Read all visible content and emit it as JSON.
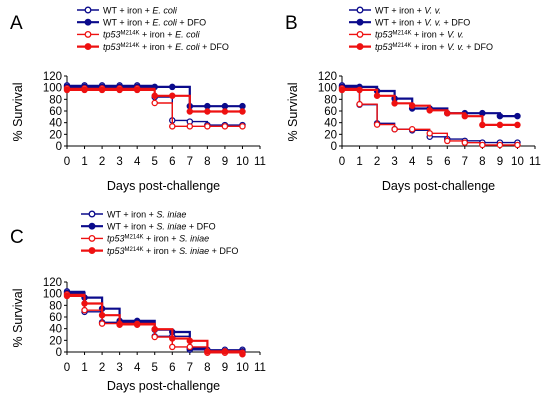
{
  "chart_data": [
    {
      "panel": "A",
      "type": "line",
      "xlabel": "Days post-challenge",
      "ylabel": "% Survival",
      "xlim": [
        0,
        11
      ],
      "ylim": [
        0,
        120
      ],
      "xticks": [
        "0",
        "1",
        "2",
        "3",
        "4",
        "5",
        "6",
        "7",
        "8",
        "9",
        "10",
        "11"
      ],
      "yticks": [
        "0",
        "20",
        "40",
        "60",
        "80",
        "100",
        "120"
      ],
      "legend_position": "top",
      "x": [
        0,
        1,
        2,
        3,
        4,
        5,
        6,
        7,
        8,
        9,
        10
      ],
      "series": [
        {
          "name_parts": [
            {
              "t": "WT + iron + "
            },
            {
              "t": "E. coli",
              "s": "it"
            }
          ],
          "color": "#0b0b8c",
          "filled": false,
          "values": [
            100,
            100,
            100,
            100,
            100,
            80,
            40,
            38,
            32,
            32,
            32
          ]
        },
        {
          "name_parts": [
            {
              "t": "WT + iron + "
            },
            {
              "t": "E. coli",
              "s": "it"
            },
            {
              "t": " + DFO"
            }
          ],
          "color": "#0b0b8c",
          "filled": true,
          "values": [
            100,
            100,
            100,
            100,
            100,
            100,
            100,
            67,
            67,
            67,
            67
          ]
        },
        {
          "name_parts": [
            {
              "t": "tp53",
              "s": "it"
            },
            {
              "t": "M214K",
              "s": "sup"
            },
            {
              "t": " + iron + "
            },
            {
              "t": "E. coli",
              "s": "it"
            }
          ],
          "color": "#ee1111",
          "filled": false,
          "values": [
            100,
            100,
            100,
            100,
            100,
            75,
            35,
            35,
            35,
            35,
            35
          ]
        },
        {
          "name_parts": [
            {
              "t": "tp53",
              "s": "it"
            },
            {
              "t": "M214K",
              "s": "sup"
            },
            {
              "t": " + iron + "
            },
            {
              "t": "E. coli",
              "s": "it"
            },
            {
              "t": " + DFO"
            }
          ],
          "color": "#ee1111",
          "filled": true,
          "values": [
            100,
            100,
            100,
            100,
            100,
            90,
            90,
            63,
            63,
            63,
            63
          ]
        }
      ]
    },
    {
      "panel": "B",
      "type": "line",
      "xlabel": "Days post-challenge",
      "ylabel": "% Survival",
      "xlim": [
        0,
        11
      ],
      "ylim": [
        0,
        120
      ],
      "xticks": [
        "0",
        "1",
        "2",
        "3",
        "4",
        "5",
        "6",
        "7",
        "8",
        "9",
        "10",
        "11"
      ],
      "yticks": [
        "0",
        "20",
        "40",
        "60",
        "80",
        "100",
        "120"
      ],
      "legend_position": "top",
      "x": [
        0,
        1,
        2,
        3,
        4,
        5,
        6,
        7,
        8,
        9,
        10
      ],
      "series": [
        {
          "name_parts": [
            {
              "t": "WT + iron + "
            },
            {
              "t": "V. v.",
              "s": "it"
            }
          ],
          "color": "#0b0b8c",
          "filled": false,
          "values": [
            100,
            67,
            35,
            25,
            23,
            12,
            8,
            5,
            2,
            2,
            2
          ]
        },
        {
          "name_parts": [
            {
              "t": "WT + iron + "
            },
            {
              "t": "V. v.",
              "s": "it"
            },
            {
              "t": " + DFO"
            }
          ],
          "color": "#0b0b8c",
          "filled": true,
          "values": [
            100,
            100,
            93,
            80,
            63,
            63,
            55,
            55,
            55,
            50,
            50
          ]
        },
        {
          "name_parts": [
            {
              "t": "tp53",
              "s": "it"
            },
            {
              "t": "M214K",
              "s": "sup"
            },
            {
              "t": " + iron + "
            },
            {
              "t": "V. v.",
              "s": "it"
            }
          ],
          "color": "#ee1111",
          "filled": false,
          "values": [
            100,
            73,
            38,
            30,
            30,
            23,
            10,
            7,
            3,
            3,
            3
          ]
        },
        {
          "name_parts": [
            {
              "t": "tp53",
              "s": "it"
            },
            {
              "t": "M214K",
              "s": "sup"
            },
            {
              "t": " + iron + "
            },
            {
              "t": "V. v.",
              "s": "it"
            },
            {
              "t": " + DFO"
            }
          ],
          "color": "#ee1111",
          "filled": true,
          "values": [
            100,
            100,
            90,
            77,
            73,
            65,
            60,
            55,
            40,
            40,
            40
          ]
        }
      ]
    },
    {
      "panel": "C",
      "type": "line",
      "xlabel": "Days post-challenge",
      "ylabel": "% Survival",
      "xlim": [
        0,
        11
      ],
      "ylim": [
        0,
        120
      ],
      "xticks": [
        "0",
        "1",
        "2",
        "3",
        "4",
        "5",
        "6",
        "7",
        "8",
        "9",
        "10",
        "11"
      ],
      "yticks": [
        "0",
        "20",
        "40",
        "60",
        "80",
        "100",
        "120"
      ],
      "legend_position": "top",
      "x": [
        0,
        1,
        2,
        3,
        4,
        5,
        6,
        7,
        8,
        9,
        10
      ],
      "series": [
        {
          "name_parts": [
            {
              "t": "WT + iron + "
            },
            {
              "t": "S. iniae",
              "s": "it"
            }
          ],
          "color": "#0b0b8c",
          "filled": false,
          "values": [
            100,
            65,
            47,
            47,
            47,
            23,
            23,
            0,
            0,
            0,
            0
          ]
        },
        {
          "name_parts": [
            {
              "t": "WT + iron + "
            },
            {
              "t": "S. iniae",
              "s": "it"
            },
            {
              "t": " + DFO"
            }
          ],
          "color": "#0b0b8c",
          "filled": true,
          "values": [
            100,
            92,
            73,
            52,
            52,
            37,
            33,
            5,
            0,
            0,
            0
          ]
        },
        {
          "name_parts": [
            {
              "t": "tp53",
              "s": "it"
            },
            {
              "t": "M214K",
              "s": "sup"
            },
            {
              "t": " + iron + "
            },
            {
              "t": "S. iniae",
              "s": "it"
            }
          ],
          "color": "#ee1111",
          "filled": false,
          "values": [
            100,
            73,
            50,
            48,
            48,
            27,
            10,
            10,
            0,
            0,
            0
          ]
        },
        {
          "name_parts": [
            {
              "t": "tp53",
              "s": "it"
            },
            {
              "t": "M214K",
              "s": "sup"
            },
            {
              "t": " + iron + "
            },
            {
              "t": "S. iniae",
              "s": "it"
            },
            {
              "t": " + DFO"
            }
          ],
          "color": "#ee1111",
          "filled": true,
          "values": [
            100,
            87,
            67,
            52,
            52,
            43,
            27,
            23,
            5,
            5,
            0
          ]
        }
      ]
    }
  ]
}
